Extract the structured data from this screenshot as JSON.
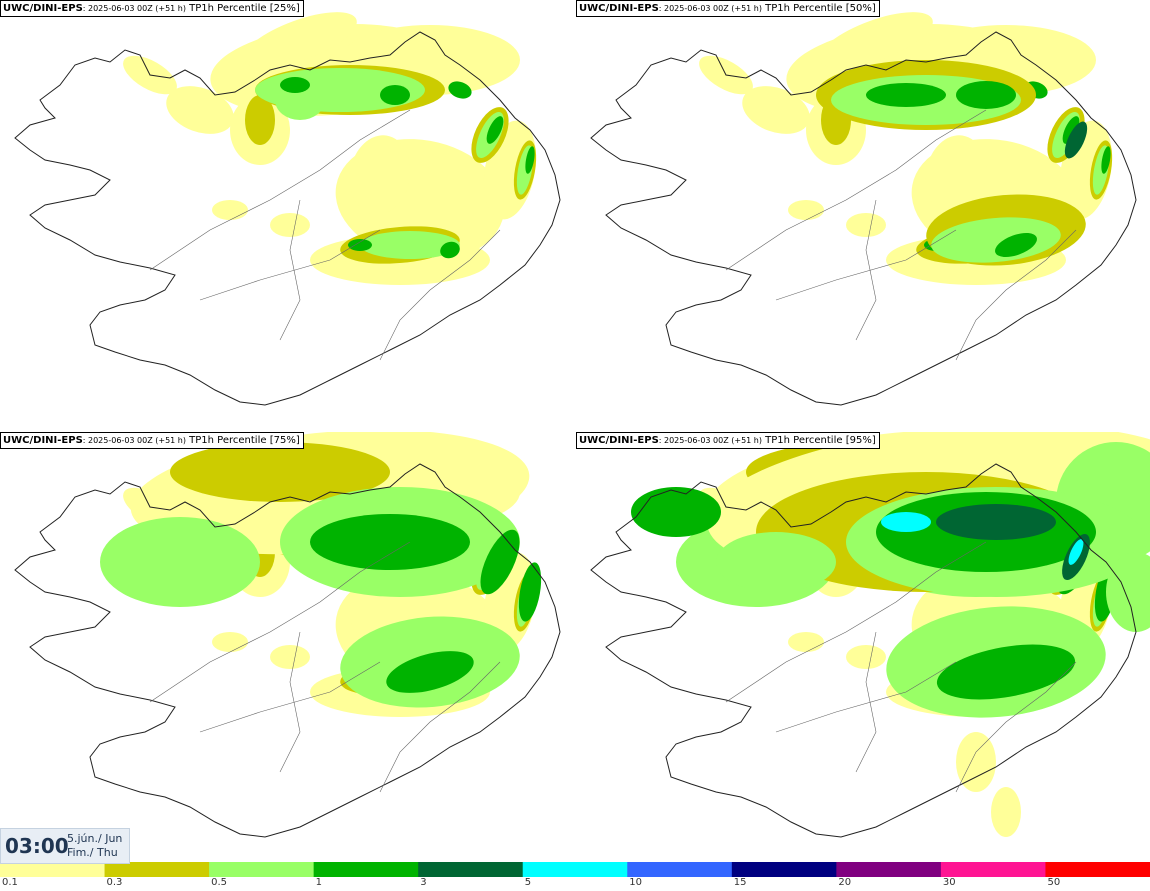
{
  "panels": [
    {
      "model": "UWC/DINI-EPS",
      "run": ": 2025-06-03 00Z (+51 h)",
      "field": " TP1h Percentile [25%]",
      "level": 1
    },
    {
      "model": "UWC/DINI-EPS",
      "run": ": 2025-06-03 00Z (+51 h)",
      "field": " TP1h Percentile [50%]",
      "level": 2
    },
    {
      "model": "UWC/DINI-EPS",
      "run": ": 2025-06-03 00Z (+51 h)",
      "field": " TP1h Percentile [75%]",
      "level": 3
    },
    {
      "model": "UWC/DINI-EPS",
      "run": ": 2025-06-03 00Z (+51 h)",
      "field": " TP1h Percentile [95%]",
      "level": 4
    }
  ],
  "valid_time": {
    "time": "03:00",
    "date": "5.jún./ Jun",
    "day": "Fim./ Thu"
  },
  "legend": {
    "colors": [
      "#ffff99",
      "#cccc00",
      "#99ff66",
      "#00b300",
      "#006633",
      "#00ffff",
      "#3366ff",
      "#000080",
      "#800080",
      "#ff1493",
      "#ff0000"
    ],
    "ticks": [
      "0.1",
      "0.3",
      "0.5",
      "1",
      "3",
      "5",
      "10",
      "15",
      "20",
      "30",
      "50"
    ]
  }
}
